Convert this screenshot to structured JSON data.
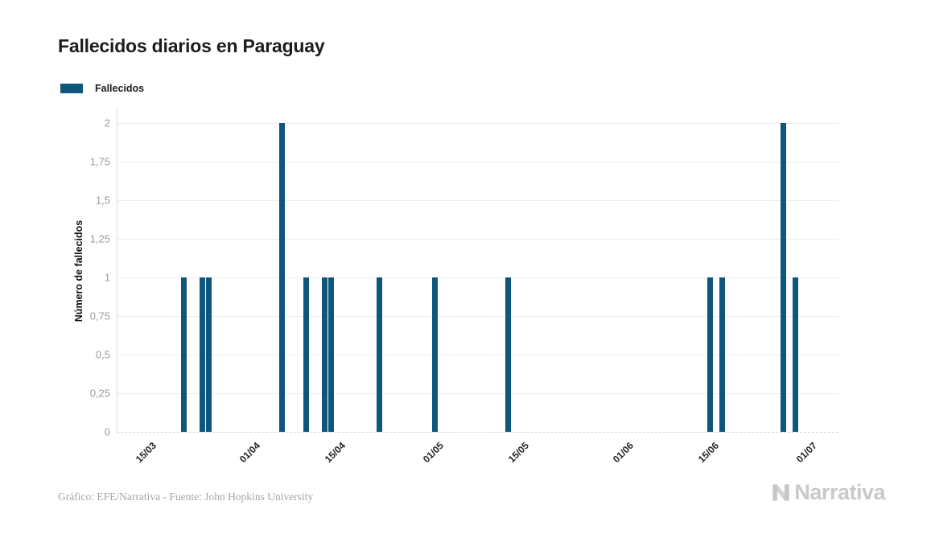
{
  "chart_data": {
    "type": "bar",
    "title": "Fallecidos diarios en Paraguay",
    "legend_position": "top-left",
    "grid": "horizontal",
    "series": [
      {
        "name": "Fallecidos",
        "color": "#0f567c",
        "points": [
          {
            "date": "20/03",
            "value": 1
          },
          {
            "date": "23/03",
            "value": 1
          },
          {
            "date": "24/03",
            "value": 1
          },
          {
            "date": "05/04",
            "value": 2
          },
          {
            "date": "09/04",
            "value": 1
          },
          {
            "date": "12/04",
            "value": 1
          },
          {
            "date": "13/04",
            "value": 1
          },
          {
            "date": "21/04",
            "value": 1
          },
          {
            "date": "30/04",
            "value": 1
          },
          {
            "date": "12/05",
            "value": 1
          },
          {
            "date": "14/06",
            "value": 1
          },
          {
            "date": "16/06",
            "value": 1
          },
          {
            "date": "26/06",
            "value": 2
          },
          {
            "date": "28/06",
            "value": 1
          }
        ]
      }
    ],
    "x_axis": {
      "domain": [
        "09/03",
        "05/07"
      ],
      "tick_labels": [
        "15/03",
        "01/04",
        "15/04",
        "01/05",
        "15/05",
        "01/06",
        "15/06",
        "01/07"
      ]
    },
    "y_axis": {
      "title": "Número de fallecidos",
      "min": 0,
      "max": 2,
      "tick_interval": 0.25,
      "tick_labels": [
        "0",
        "0,25",
        "0,5",
        "0,75",
        "1",
        "1,25",
        "1,5",
        "1,75",
        "2"
      ]
    }
  },
  "footer": {
    "credit": "Gráfico: EFE/Narrativa - Fuente: John Hopkins University",
    "logo_text": "Narrativa"
  },
  "colors": {
    "bar": "#0f567c",
    "grid": "#ededed",
    "axis_text": "#9b9b9b",
    "logo": "#c9c9c9"
  }
}
